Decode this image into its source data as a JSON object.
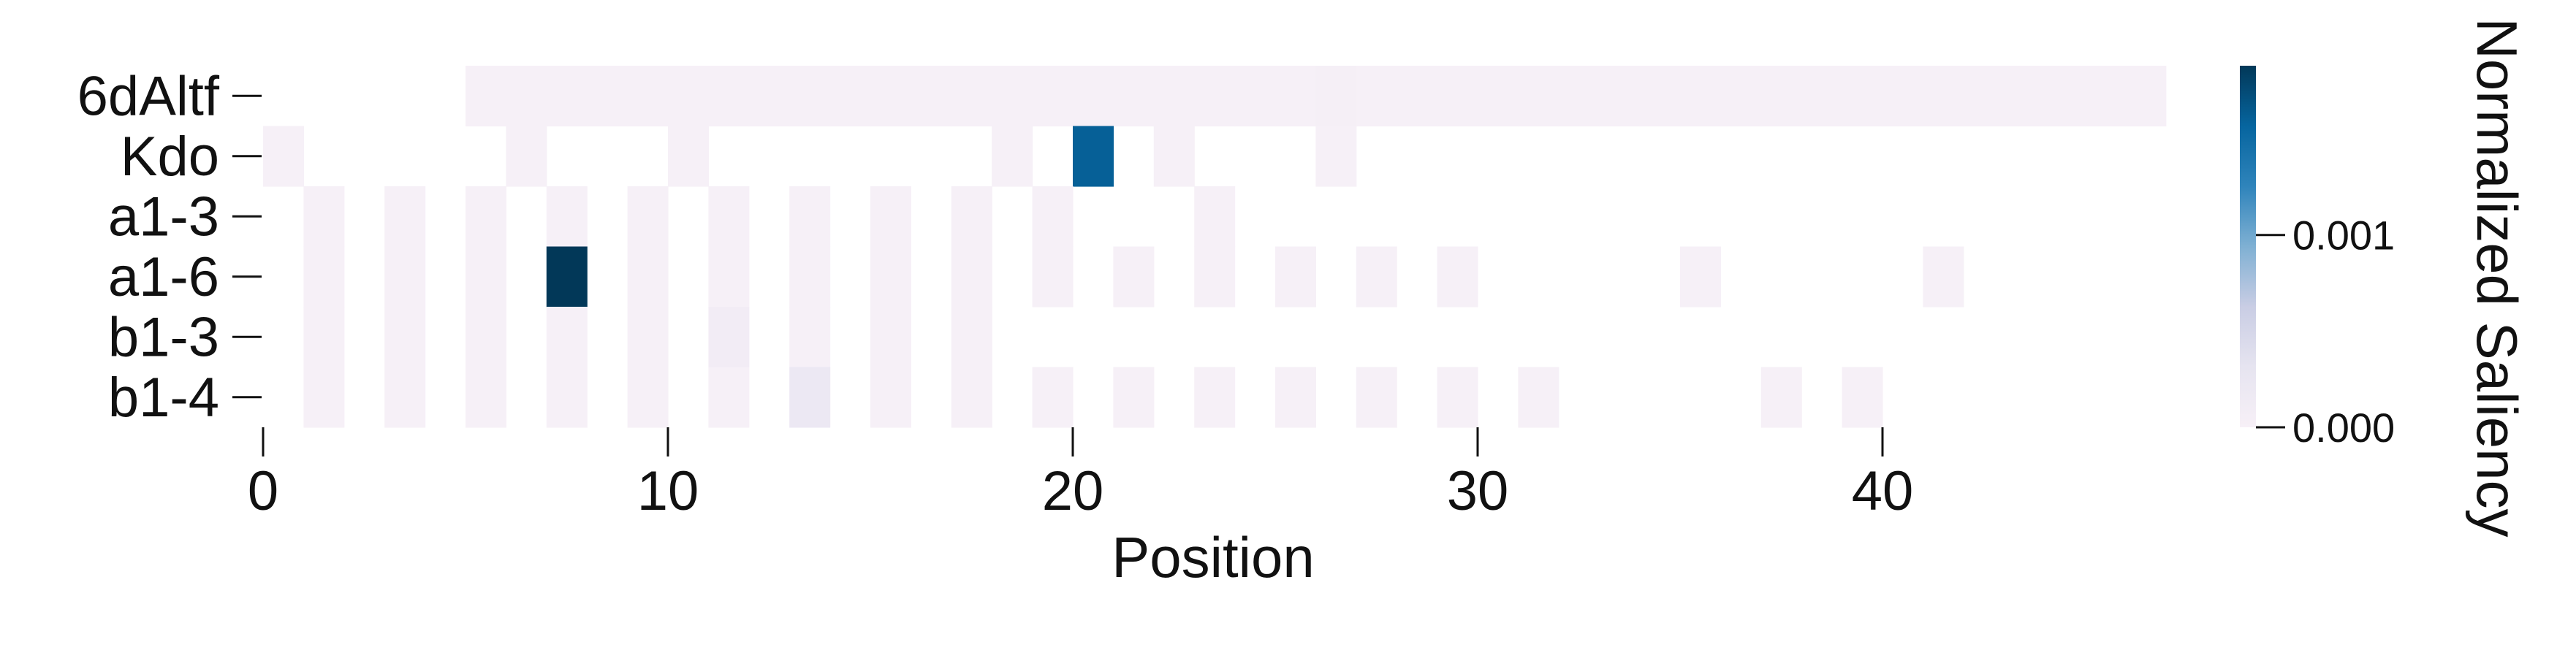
{
  "chart_data": {
    "type": "heatmap",
    "title": "",
    "xlabel": "Position",
    "ylabel": "",
    "x_ticks": [
      0,
      10,
      20,
      30,
      40
    ],
    "x_range": [
      0,
      47
    ],
    "rows": [
      "6dAltf",
      "Kdo",
      "a1-3",
      "a1-6",
      "b1-3",
      "b1-4"
    ],
    "colorbar": {
      "label": "Normalized Saliency",
      "ticks": [
        {
          "value": 0.0,
          "label": "0.000"
        },
        {
          "value": 0.001,
          "label": "0.001"
        }
      ],
      "range": [
        0.0,
        0.00188
      ],
      "colors": [
        "#f7f0f7",
        "#e6e4f0",
        "#c9cde4",
        "#7fb0d3",
        "#2f84bb",
        "#06659f",
        "#023858"
      ]
    },
    "cells": [
      {
        "row": "6dAltf",
        "positions": [
          5,
          6,
          7,
          8,
          9,
          10,
          11,
          12,
          13,
          14,
          15,
          16,
          17,
          18,
          19,
          20,
          21,
          22,
          23,
          24,
          25,
          27,
          28,
          29,
          30,
          31,
          32,
          33,
          34,
          35,
          36,
          37,
          38,
          39,
          40,
          41,
          42,
          43,
          44,
          45,
          46
        ],
        "value": 1e-05
      },
      {
        "row": "6dAltf",
        "positions": [
          26
        ],
        "value": 3e-05
      },
      {
        "row": "Kdo",
        "positions": [
          0,
          6,
          10,
          18,
          22,
          26
        ],
        "value": 1e-05
      },
      {
        "row": "Kdo",
        "positions": [
          20
        ],
        "value": 0.0016
      },
      {
        "row": "a1-3",
        "positions": [
          1,
          3,
          5,
          7,
          9,
          11,
          13,
          15,
          17,
          19,
          23
        ],
        "value": 1e-05
      },
      {
        "row": "a1-6",
        "positions": [
          1,
          3,
          5,
          9,
          11,
          13,
          15,
          17,
          19,
          21,
          23,
          25,
          27,
          29,
          35,
          41
        ],
        "value": 1e-05
      },
      {
        "row": "a1-6",
        "positions": [
          7
        ],
        "value": 0.00188
      },
      {
        "row": "b1-3",
        "positions": [
          1,
          3,
          5,
          7,
          9,
          13,
          15,
          17
        ],
        "value": 1e-05
      },
      {
        "row": "b1-3",
        "positions": [
          11
        ],
        "value": 0.0001
      },
      {
        "row": "b1-4",
        "positions": [
          1,
          3,
          5,
          7,
          9,
          11,
          15,
          17,
          19,
          21,
          23,
          25,
          27,
          29,
          31,
          37,
          39
        ],
        "value": 1e-05
      },
      {
        "row": "b1-4",
        "positions": [
          13
        ],
        "value": 0.0002
      }
    ]
  }
}
